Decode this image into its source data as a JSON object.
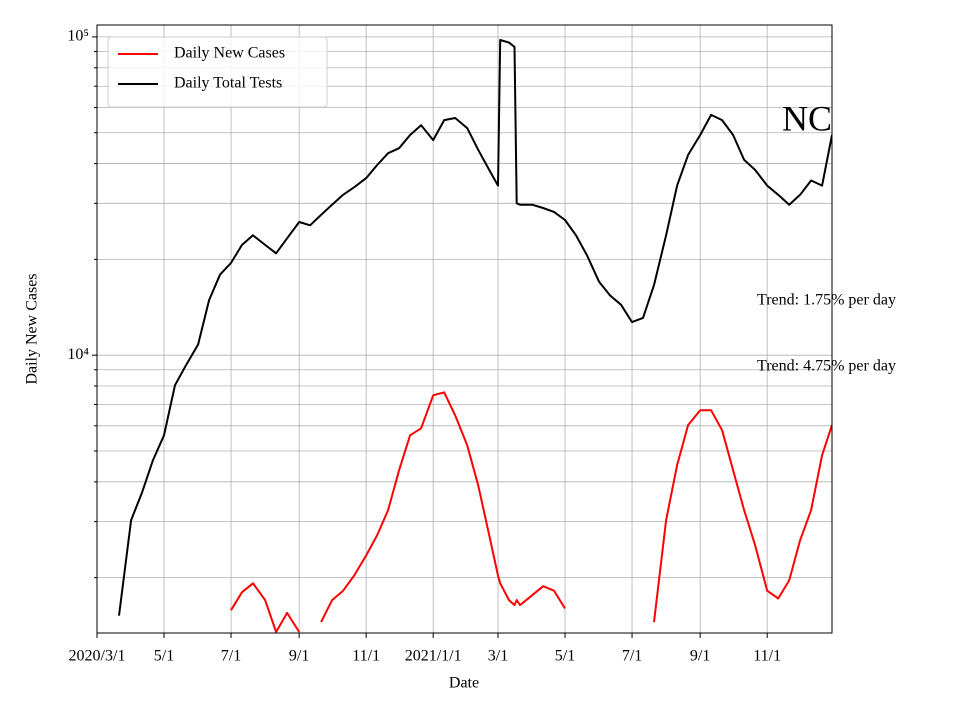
{
  "chart_data": {
    "type": "line",
    "xlabel": "Date",
    "ylabel": "Daily New Cases",
    "yscale": "log",
    "grid": true,
    "legend": "upper left",
    "annotations": [
      "NC",
      "Trend: 1.75% per day",
      "Trend: 4.75% per day"
    ],
    "xlim": [
      "2020-03-01",
      "2021-12-30"
    ],
    "xticks": [
      {
        "value": "2020-03-01",
        "label": "2020/3/1"
      },
      {
        "value": "2020-05-01",
        "label": "5/1"
      },
      {
        "value": "2020-07-01",
        "label": "7/1"
      },
      {
        "value": "2020-09-01",
        "label": "9/1"
      },
      {
        "value": "2020-11-01",
        "label": "11/1"
      },
      {
        "value": "2021-01-01",
        "label": "2021/1/1"
      },
      {
        "value": "2021-03-01",
        "label": "3/1"
      },
      {
        "value": "2021-05-01",
        "label": "5/1"
      },
      {
        "value": "2021-07-01",
        "label": "7/1"
      },
      {
        "value": "2021-09-01",
        "label": "9/1"
      },
      {
        "value": "2021-11-01",
        "label": "11/1"
      }
    ],
    "ylim": [
      1340,
      109000
    ],
    "yticks": [
      {
        "value": 10000,
        "label": "10⁴"
      },
      {
        "value": 100000,
        "label": "10⁵"
      }
    ],
    "yminor": [
      2000,
      3000,
      4000,
      5000,
      6000,
      7000,
      8000,
      9000,
      20000,
      30000,
      40000,
      50000,
      60000,
      70000,
      80000,
      90000
    ],
    "x": [
      "2020-03-21",
      "2020-04-01",
      "2020-04-11",
      "2020-04-21",
      "2020-05-01",
      "2020-05-11",
      "2020-05-21",
      "2020-06-01",
      "2020-06-11",
      "2020-06-21",
      "2020-07-01",
      "2020-07-11",
      "2020-07-21",
      "2020-08-01",
      "2020-08-11",
      "2020-08-21",
      "2020-09-01",
      "2020-09-11",
      "2020-09-21",
      "2020-10-01",
      "2020-10-11",
      "2020-10-21",
      "2020-11-01",
      "2020-11-11",
      "2020-11-21",
      "2020-12-01",
      "2020-12-11",
      "2020-12-21",
      "2021-01-01",
      "2021-01-11",
      "2021-01-21",
      "2021-02-01",
      "2021-02-11",
      "2021-02-21",
      "2021-03-01",
      "2021-03-03",
      "2021-03-11",
      "2021-03-16",
      "2021-03-18",
      "2021-03-21",
      "2021-04-01",
      "2021-04-11",
      "2021-04-21",
      "2021-05-01",
      "2021-05-11",
      "2021-05-21",
      "2021-06-01",
      "2021-06-11",
      "2021-06-21",
      "2021-07-01",
      "2021-07-11",
      "2021-07-21",
      "2021-08-01",
      "2021-08-11",
      "2021-08-21",
      "2021-09-01",
      "2021-09-11",
      "2021-09-21",
      "2021-10-01",
      "2021-10-11",
      "2021-10-21",
      "2021-11-01",
      "2021-11-11",
      "2021-11-21",
      "2021-12-01",
      "2021-12-11",
      "2021-12-21",
      "2021-12-30"
    ],
    "series": [
      {
        "name": "Daily New Cases",
        "color": "#ff0000",
        "values": [
          null,
          null,
          null,
          null,
          null,
          null,
          null,
          null,
          null,
          null,
          1580,
          1800,
          1920,
          1700,
          1350,
          1550,
          1350,
          null,
          1450,
          1700,
          1820,
          2030,
          2350,
          2720,
          3260,
          4350,
          5600,
          5890,
          7480,
          7640,
          6470,
          5210,
          3900,
          2720,
          2030,
          1920,
          1700,
          1640,
          1700,
          1640,
          1760,
          1880,
          1820,
          1600,
          null,
          null,
          null,
          null,
          null,
          null,
          null,
          1450,
          3030,
          4510,
          6030,
          6710,
          6710,
          5810,
          4350,
          3260,
          2530,
          1820,
          1720,
          1960,
          2620,
          3260,
          4850,
          6030
        ]
      },
      {
        "name": "Daily Total Tests",
        "color": "#000000",
        "values": [
          1520,
          3030,
          3700,
          4680,
          5600,
          8050,
          9300,
          10800,
          14900,
          17900,
          19500,
          22200,
          23800,
          22200,
          20900,
          23300,
          26200,
          25600,
          27600,
          29700,
          31900,
          33700,
          36000,
          39600,
          43100,
          44700,
          49200,
          52800,
          47400,
          54800,
          55600,
          51700,
          44200,
          38200,
          34100,
          97800,
          96000,
          93000,
          30000,
          29700,
          29700,
          29000,
          28200,
          26600,
          23800,
          20600,
          17000,
          15400,
          14400,
          12700,
          13100,
          16600,
          23800,
          34100,
          42600,
          49200,
          56900,
          54800,
          49200,
          41100,
          38200,
          34100,
          31900,
          29700,
          31900,
          35400,
          34100,
          49200
        ]
      }
    ]
  }
}
